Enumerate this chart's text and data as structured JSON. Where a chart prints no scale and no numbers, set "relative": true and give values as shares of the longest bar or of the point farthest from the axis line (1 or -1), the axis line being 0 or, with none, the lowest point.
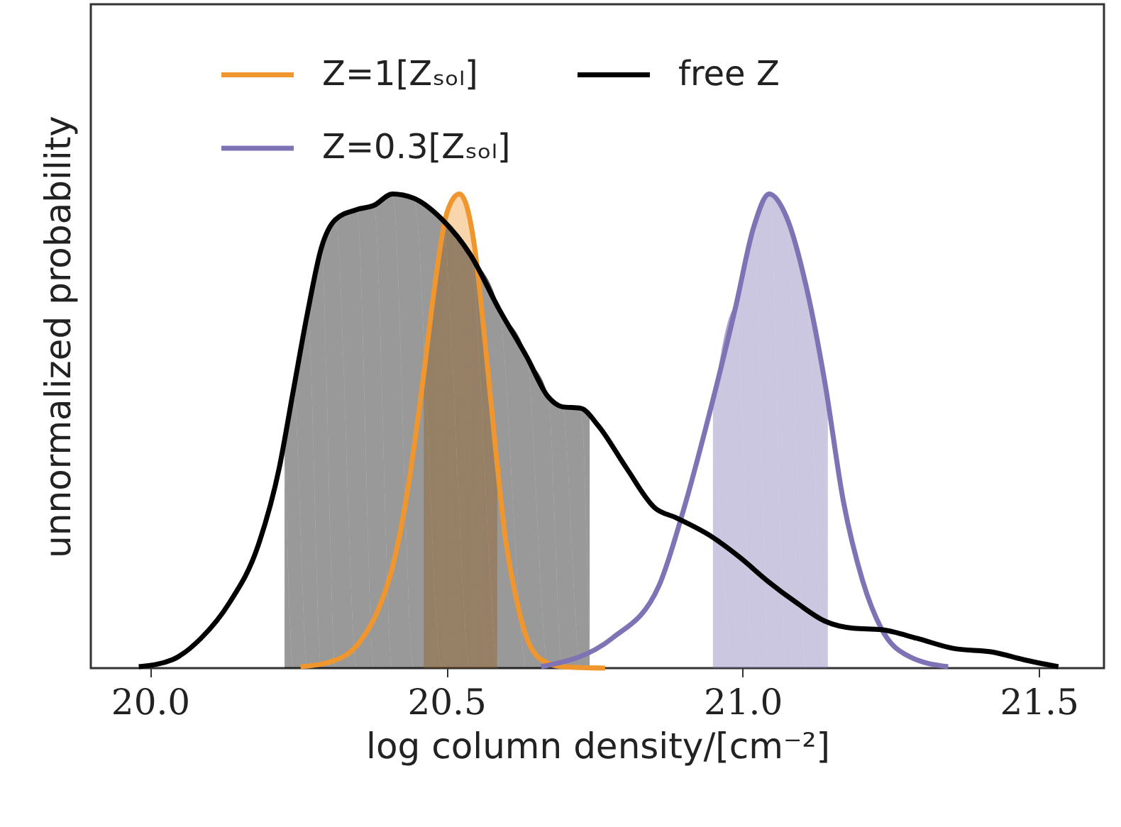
{
  "chart_data": {
    "type": "line",
    "relative": true,
    "xlabel": "log column density/[cm⁻²]",
    "ylabel": "unnormalized probability",
    "xlim": [
      19.9,
      21.61
    ],
    "xticks": [
      {
        "value": 20,
        "label": "20.0"
      },
      {
        "value": 20.5,
        "label": "20.5"
      },
      {
        "value": 21,
        "label": "21.0"
      },
      {
        "value": 21.5,
        "label": "21.5"
      }
    ],
    "legend": "top",
    "series": [
      {
        "name": "Z=1[Zₛₒₗ]",
        "color": "#f0962e",
        "x": [
          20.254,
          20.301,
          20.349,
          20.385,
          20.409,
          20.433,
          20.457,
          20.481,
          20.498,
          20.512,
          20.522,
          20.534,
          20.548,
          20.565,
          20.584,
          20.6,
          20.617,
          20.636,
          20.66,
          20.696,
          20.768
        ],
        "values": [
          0.003,
          0.012,
          0.048,
          0.123,
          0.212,
          0.362,
          0.572,
          0.811,
          0.946,
          0.991,
          1.0,
          0.976,
          0.886,
          0.692,
          0.452,
          0.272,
          0.153,
          0.063,
          0.018,
          0.003,
          0
        ]
      },
      {
        "name": "Z=0.3[Zₛₒₗ]",
        "color": "#7f72b5",
        "x": [
          20.66,
          20.78,
          20.859,
          20.9,
          20.947,
          20.988,
          21.019,
          21.045,
          21.074,
          21.108,
          21.139,
          21.17,
          21.203,
          21.234,
          21.282,
          21.347
        ],
        "values": [
          0.003,
          0.063,
          0.174,
          0.332,
          0.551,
          0.76,
          0.931,
          1.0,
          0.952,
          0.802,
          0.602,
          0.353,
          0.183,
          0.084,
          0.024,
          0.003
        ]
      },
      {
        "name": "free Z",
        "color": "#000000",
        "x": [
          19.981,
          20.038,
          20.086,
          20.134,
          20.182,
          20.218,
          20.242,
          20.266,
          20.289,
          20.313,
          20.349,
          20.378,
          20.409,
          20.445,
          20.493,
          20.541,
          20.589,
          20.636,
          20.672,
          20.696,
          20.727,
          20.756,
          20.804,
          20.852,
          20.888,
          20.947,
          20.995,
          21.043,
          21.091,
          21.139,
          21.187,
          21.234,
          21.294,
          21.354,
          21.426,
          21.474,
          21.533
        ],
        "values": [
          0.003,
          0.018,
          0.063,
          0.138,
          0.257,
          0.422,
          0.587,
          0.751,
          0.886,
          0.946,
          0.967,
          0.976,
          1.0,
          0.991,
          0.946,
          0.871,
          0.757,
          0.656,
          0.572,
          0.551,
          0.548,
          0.512,
          0.422,
          0.338,
          0.317,
          0.278,
          0.234,
          0.183,
          0.138,
          0.099,
          0.084,
          0.081,
          0.063,
          0.042,
          0.033,
          0.018,
          0.003
        ]
      },
      {
        "type": "area",
        "color": "#f0962e",
        "x": [
          20.462,
          20.481,
          20.498,
          20.512,
          20.522,
          20.534,
          20.548,
          20.565,
          20.584,
          20.586
        ],
        "values": [
          0.62,
          0.811,
          0.946,
          0.991,
          1.0,
          0.976,
          0.886,
          0.692,
          0.452,
          0.43
        ]
      },
      {
        "type": "area",
        "color": "#7f72b5",
        "x": [
          20.95,
          20.988,
          21.019,
          21.045,
          21.074,
          21.108,
          21.139,
          21.144
        ],
        "values": [
          0.56,
          0.76,
          0.931,
          1.0,
          0.952,
          0.802,
          0.602,
          0.57
        ]
      },
      {
        "type": "area",
        "color": "#000000",
        "x": [
          20.227,
          20.242,
          20.266,
          20.289,
          20.313,
          20.349,
          20.378,
          20.409,
          20.445,
          20.493,
          20.541,
          20.589,
          20.636,
          20.672,
          20.696,
          20.727,
          20.742
        ],
        "values": [
          0.488,
          0.587,
          0.751,
          0.886,
          0.946,
          0.967,
          0.976,
          1.0,
          0.991,
          0.946,
          0.871,
          0.757,
          0.656,
          0.572,
          0.551,
          0.548,
          0.542
        ]
      }
    ]
  }
}
